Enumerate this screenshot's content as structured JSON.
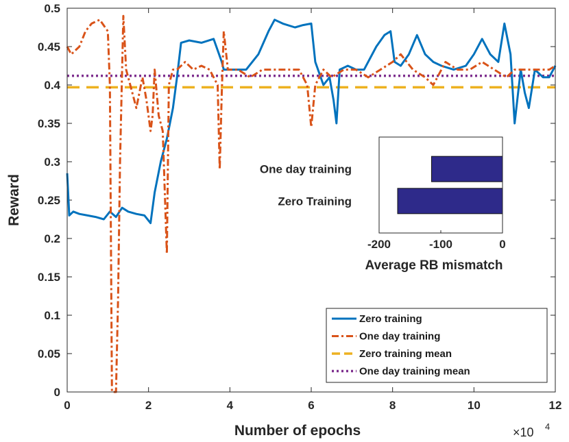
{
  "chart_data": [
    {
      "type": "line",
      "xlabel": "Number of epochs",
      "ylabel": "Reward",
      "x_multiplier_label": "×10",
      "x_multiplier_exp": "4",
      "xlim": [
        0,
        12
      ],
      "ylim": [
        0,
        0.5
      ],
      "x_ticks": [
        0,
        2,
        4,
        6,
        8,
        10,
        12
      ],
      "x_tick_labels": [
        "0",
        "2",
        "4",
        "6",
        "8",
        "10",
        "12"
      ],
      "y_ticks": [
        0,
        0.05,
        0.1,
        0.15,
        0.2,
        0.25,
        0.3,
        0.35,
        0.4,
        0.45,
        0.5
      ],
      "y_tick_labels": [
        "0",
        "0.05",
        "0.1",
        "0.15",
        "0.2",
        "0.25",
        "0.3",
        "0.35",
        "0.4",
        "0.45",
        "0.5"
      ],
      "series": [
        {
          "name": "Zero training",
          "color": "#0072BD",
          "style": "solid",
          "x": [
            0,
            0.05,
            0.15,
            0.3,
            0.5,
            0.7,
            0.9,
            1.05,
            1.2,
            1.35,
            1.5,
            1.7,
            1.9,
            2.05,
            2.15,
            2.3,
            2.45,
            2.6,
            2.7,
            2.8,
            3.0,
            3.3,
            3.6,
            3.8,
            3.85,
            3.95,
            4.2,
            4.4,
            4.7,
            4.95,
            5.1,
            5.3,
            5.6,
            5.8,
            6.0,
            6.1,
            6.3,
            6.45,
            6.55,
            6.62,
            6.7,
            6.9,
            7.1,
            7.3,
            7.6,
            7.8,
            7.95,
            8.05,
            8.2,
            8.4,
            8.6,
            8.8,
            9.0,
            9.2,
            9.5,
            9.8,
            10.0,
            10.2,
            10.4,
            10.6,
            10.75,
            10.9,
            11.0,
            11.15,
            11.25,
            11.35,
            11.5,
            11.7,
            11.85,
            12.0
          ],
          "values": [
            0.285,
            0.23,
            0.235,
            0.232,
            0.23,
            0.228,
            0.225,
            0.235,
            0.228,
            0.24,
            0.235,
            0.232,
            0.23,
            0.22,
            0.26,
            0.3,
            0.33,
            0.37,
            0.41,
            0.455,
            0.458,
            0.455,
            0.46,
            0.43,
            0.42,
            0.42,
            0.42,
            0.42,
            0.44,
            0.47,
            0.485,
            0.48,
            0.475,
            0.478,
            0.48,
            0.43,
            0.4,
            0.41,
            0.38,
            0.35,
            0.42,
            0.425,
            0.42,
            0.42,
            0.45,
            0.465,
            0.47,
            0.43,
            0.425,
            0.44,
            0.465,
            0.44,
            0.43,
            0.425,
            0.42,
            0.425,
            0.44,
            0.46,
            0.44,
            0.43,
            0.48,
            0.44,
            0.35,
            0.42,
            0.39,
            0.37,
            0.42,
            0.41,
            0.41,
            0.425
          ]
        },
        {
          "name": "One day training",
          "color": "#D95319",
          "style": "dashdot",
          "x": [
            0,
            0.1,
            0.3,
            0.45,
            0.6,
            0.8,
            1.0,
            1.05,
            1.1,
            1.2,
            1.25,
            1.3,
            1.38,
            1.45,
            1.55,
            1.7,
            1.85,
            1.95,
            2.05,
            2.1,
            2.15,
            2.25,
            2.35,
            2.45,
            2.5,
            2.6,
            2.7,
            2.9,
            3.1,
            3.3,
            3.5,
            3.7,
            3.75,
            3.8,
            3.85,
            3.95,
            4.2,
            4.5,
            4.8,
            5.1,
            5.4,
            5.7,
            5.9,
            6.0,
            6.1,
            6.3,
            6.5,
            6.8,
            7.1,
            7.4,
            7.7,
            8.0,
            8.2,
            8.5,
            8.8,
            9.0,
            9.3,
            9.6,
            9.9,
            10.2,
            10.5,
            10.8,
            11.0,
            11.3,
            11.6,
            11.85,
            12.0
          ],
          "values": [
            0.45,
            0.44,
            0.45,
            0.47,
            0.48,
            0.485,
            0.47,
            0.4,
            0.0,
            0.0,
            0.12,
            0.3,
            0.49,
            0.42,
            0.4,
            0.37,
            0.41,
            0.38,
            0.34,
            0.36,
            0.42,
            0.36,
            0.34,
            0.18,
            0.4,
            0.42,
            0.42,
            0.43,
            0.42,
            0.425,
            0.42,
            0.4,
            0.29,
            0.39,
            0.47,
            0.42,
            0.42,
            0.41,
            0.42,
            0.42,
            0.42,
            0.42,
            0.4,
            0.345,
            0.4,
            0.42,
            0.41,
            0.42,
            0.42,
            0.41,
            0.42,
            0.43,
            0.44,
            0.42,
            0.41,
            0.4,
            0.43,
            0.42,
            0.42,
            0.43,
            0.42,
            0.41,
            0.42,
            0.42,
            0.42,
            0.42,
            0.425
          ]
        },
        {
          "name": "Zero training mean",
          "color": "#EDB120",
          "style": "dashed",
          "x": [
            0,
            12
          ],
          "values": [
            0.397,
            0.397
          ]
        },
        {
          "name": "One day training mean",
          "color": "#7E2F8E",
          "style": "dotted",
          "x": [
            0,
            12
          ],
          "values": [
            0.412,
            0.412
          ]
        }
      ],
      "legend_position": "lower-right"
    },
    {
      "type": "bar",
      "orientation": "horizontal",
      "categories": [
        "One day training",
        "Zero Training"
      ],
      "values": [
        -115,
        -170
      ],
      "bar_color": "#2E2A8A",
      "xlabel": "Average RB mismatch",
      "xlim": [
        -200,
        0
      ],
      "x_ticks": [
        -200,
        -100,
        0
      ],
      "x_tick_labels": [
        "-200",
        "-100",
        "0"
      ],
      "position": "inset upper-right"
    }
  ]
}
